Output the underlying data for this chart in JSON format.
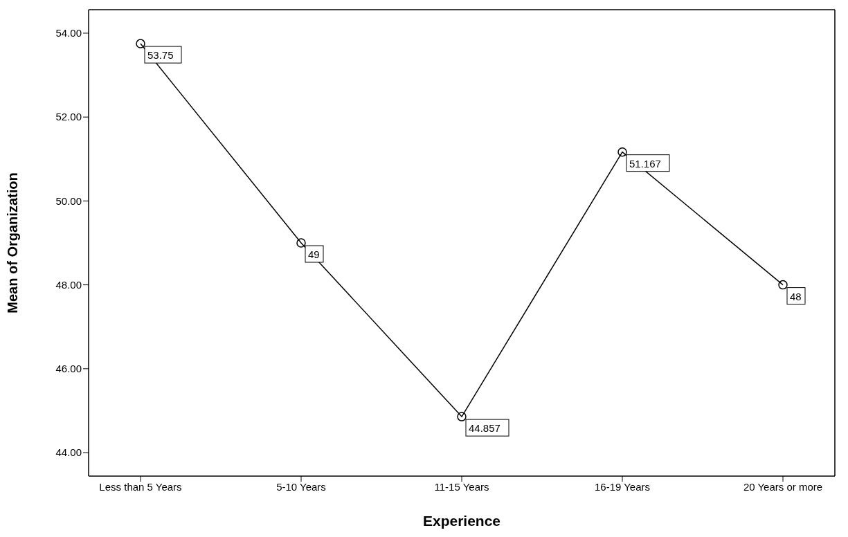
{
  "chart_data": {
    "type": "line",
    "xlabel": "Experience",
    "ylabel": "Mean of Organization",
    "categories": [
      "Less than 5 Years",
      "5-10 Years",
      "11-15 Years",
      "16-19 Years",
      "20 Years or more"
    ],
    "series": [
      {
        "color": "#000000",
        "values": [
          53.75,
          49,
          44.857,
          51.167,
          48
        ]
      }
    ],
    "ylim": [
      43.44,
      54.56
    ],
    "yticks": [
      {
        "value": 44,
        "label": "44.00"
      },
      {
        "value": 46,
        "label": "46.00"
      },
      {
        "value": 48,
        "label": "48.00"
      },
      {
        "value": 50,
        "label": "50.00"
      },
      {
        "value": 52,
        "label": "52.00"
      },
      {
        "value": 54,
        "label": "54.00"
      }
    ],
    "data_labels": true,
    "marker": "circle",
    "line_style": "solid",
    "grid": false
  }
}
